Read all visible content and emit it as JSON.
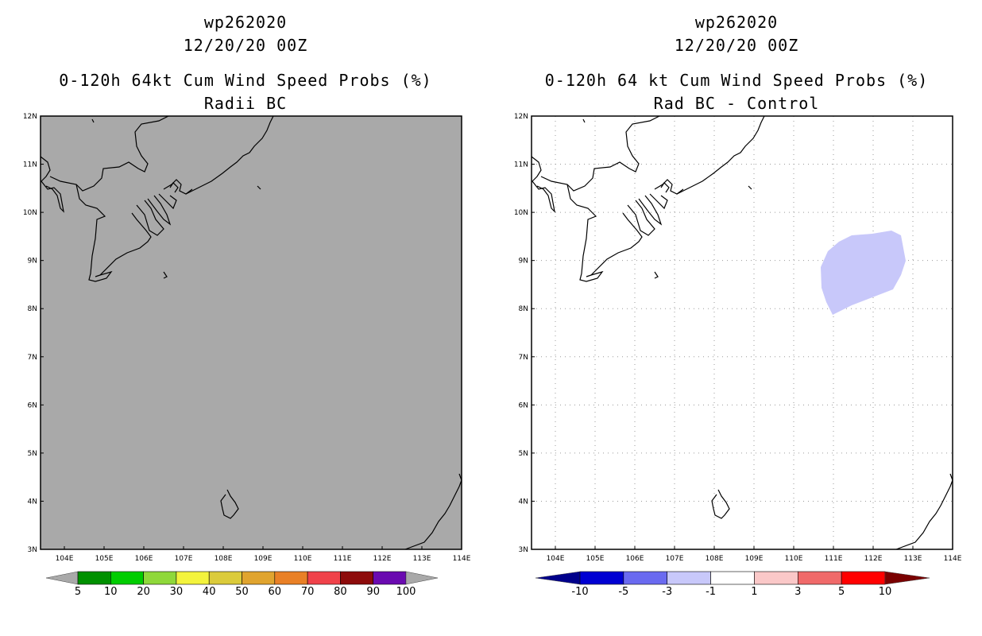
{
  "left_panel": {
    "storm_id": "wp262020",
    "datetime": "12/20/20 00Z",
    "title": "0-120h 64kt Cum Wind Speed Probs (%)",
    "subtitle": "Radii BC",
    "map_background": "#a9a9a9",
    "colorbar": {
      "labels": [
        "5",
        "10",
        "20",
        "30",
        "40",
        "50",
        "60",
        "70",
        "80",
        "90",
        "100"
      ],
      "colors": [
        "#009000",
        "#00cd00",
        "#8fd83a",
        "#f3f33d",
        "#dbcb3b",
        "#e0a42f",
        "#e98026",
        "#f0424a",
        "#8d0b0b",
        "#6a0ab0"
      ],
      "below_color": "#a9a9a9",
      "above_color": "#a9a9a9"
    }
  },
  "right_panel": {
    "storm_id": "wp262020",
    "datetime": "12/20/20 00Z",
    "title": "0-120h 64 kt Cum Wind Speed Probs (%)",
    "subtitle": "Rad BC - Control",
    "map_background": "#ffffff",
    "shaded_region_color": "#c8c8fa",
    "colorbar": {
      "labels": [
        "-10",
        "-5",
        "-3",
        "-1",
        "1",
        "3",
        "5",
        "10"
      ],
      "colors": [
        "#0000d2",
        "#6a6af0",
        "#c8c8fa",
        "#ffffff",
        "#fac8c8",
        "#f06a6a",
        "#ff0000"
      ],
      "below_color": "#00008b",
      "above_color": "#7a0000"
    }
  },
  "axes": {
    "lon_labels": [
      "104E",
      "105E",
      "106E",
      "107E",
      "108E",
      "109E",
      "110E",
      "111E",
      "112E",
      "113E",
      "114E"
    ],
    "lat_labels": [
      "12N",
      "11N",
      "10N",
      "9N",
      "8N",
      "7N",
      "6N",
      "5N",
      "4N",
      "3N"
    ]
  }
}
